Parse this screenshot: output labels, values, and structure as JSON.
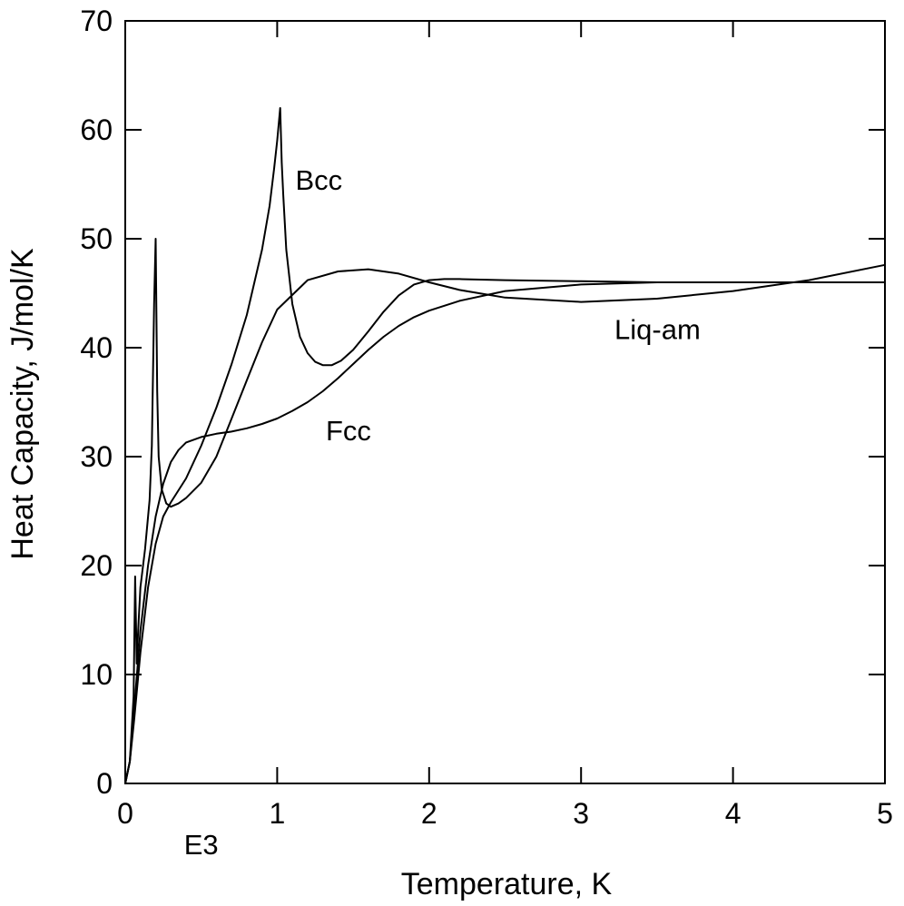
{
  "chart_data": {
    "type": "line",
    "title": "",
    "xlabel": "Temperature, K",
    "ylabel": "Heat Capacity, J/mol/K",
    "xlim": [
      0,
      5
    ],
    "ylim": [
      0,
      70
    ],
    "xticks": [
      0,
      1,
      2,
      3,
      4,
      5
    ],
    "yticks": [
      0,
      10,
      20,
      30,
      40,
      50,
      60,
      70
    ],
    "grid": false,
    "legend": "none",
    "annotations": [
      {
        "text": "E3",
        "x": 0.5,
        "y": -6.5
      }
    ],
    "series": [
      {
        "name": "Bcc",
        "label_at": [
          1.12,
          54.5
        ],
        "x": [
          0,
          0.03,
          0.06,
          0.1,
          0.15,
          0.2,
          0.25,
          0.3,
          0.4,
          0.5,
          0.6,
          0.7,
          0.8,
          0.9,
          0.95,
          0.98,
          1.0,
          1.02,
          1.03,
          1.04,
          1.06,
          1.1,
          1.15,
          1.2,
          1.25,
          1.3,
          1.36,
          1.42,
          1.5,
          1.6,
          1.7,
          1.8,
          1.9,
          2.0,
          2.1,
          2.2,
          2.5,
          3.0,
          3.5,
          4.0,
          4.5,
          5.0
        ],
        "y": [
          0,
          2,
          6,
          12,
          18,
          22,
          24.5,
          25.8,
          28,
          31,
          34.5,
          38.5,
          43,
          49,
          53,
          56.5,
          59,
          62,
          57,
          54,
          49,
          44,
          41,
          39.5,
          38.7,
          38.4,
          38.4,
          38.8,
          39.8,
          41.5,
          43.3,
          44.8,
          45.8,
          46.2,
          46.3,
          46.3,
          46.2,
          46.1,
          46.0,
          46.0,
          46.0,
          46.0
        ]
      },
      {
        "name": "Fcc",
        "label_at": [
          1.32,
          31.5
        ],
        "x": [
          0,
          0.03,
          0.06,
          0.1,
          0.15,
          0.2,
          0.25,
          0.3,
          0.35,
          0.4,
          0.5,
          0.6,
          0.7,
          0.8,
          0.9,
          1.0,
          1.1,
          1.2,
          1.3,
          1.4,
          1.5,
          1.6,
          1.7,
          1.8,
          1.9,
          2.0,
          2.2,
          2.5,
          3.0,
          3.5,
          4.0,
          4.5,
          5.0
        ],
        "y": [
          0,
          2,
          7,
          14,
          20,
          24.5,
          27.5,
          29.5,
          30.6,
          31.3,
          31.8,
          32.1,
          32.3,
          32.6,
          33.0,
          33.5,
          34.2,
          35.0,
          36.0,
          37.2,
          38.5,
          39.8,
          41.0,
          42.0,
          42.8,
          43.4,
          44.3,
          45.2,
          45.8,
          46.0,
          46.0,
          46.0,
          46.0
        ]
      },
      {
        "name": "Liq-am",
        "label_at": [
          3.22,
          40.8
        ],
        "x": [
          0,
          0.03,
          0.055,
          0.065,
          0.075,
          0.085,
          0.1,
          0.13,
          0.16,
          0.175,
          0.19,
          0.2,
          0.21,
          0.22,
          0.24,
          0.27,
          0.3,
          0.35,
          0.4,
          0.5,
          0.6,
          0.7,
          0.8,
          0.9,
          1.0,
          1.2,
          1.4,
          1.6,
          1.8,
          2.0,
          2.2,
          2.5,
          3.0,
          3.5,
          4.0,
          4.5,
          5.0
        ],
        "y": [
          0,
          2,
          8,
          19,
          11,
          14,
          18,
          21.5,
          26,
          31,
          44,
          50,
          36,
          30,
          27,
          25.7,
          25.4,
          25.7,
          26.2,
          27.6,
          30,
          33.5,
          37,
          40.5,
          43.5,
          46.2,
          47.0,
          47.2,
          46.8,
          46.0,
          45.3,
          44.6,
          44.2,
          44.5,
          45.2,
          46.2,
          47.6
        ]
      }
    ]
  }
}
